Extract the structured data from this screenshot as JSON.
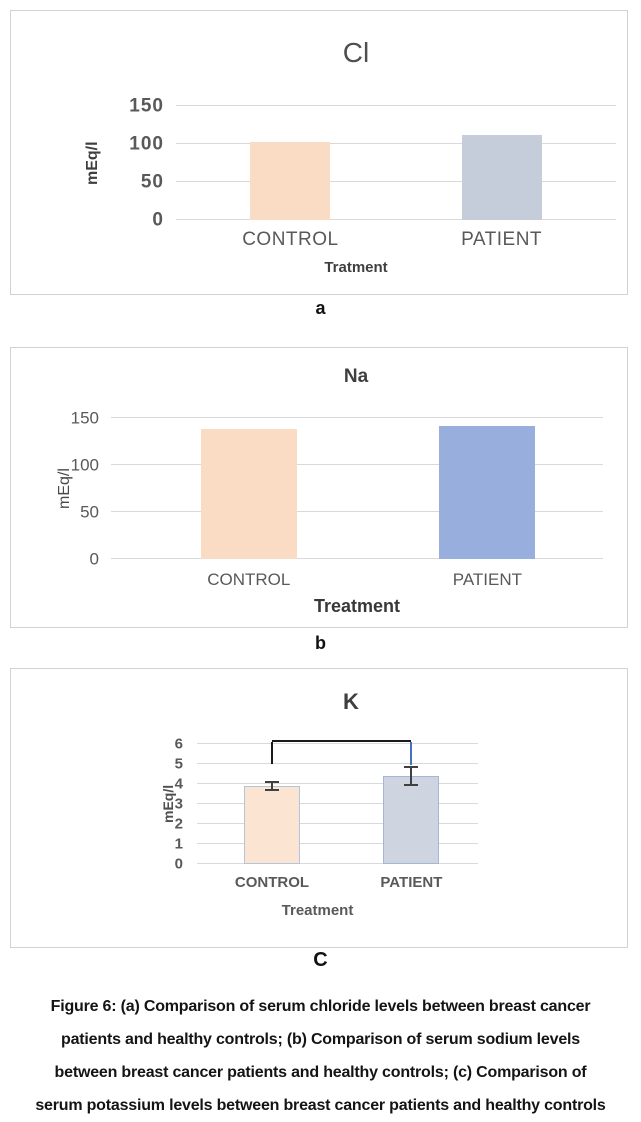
{
  "figure": {
    "caption": "Figure 6: (a)  Comparison of serum chloride levels between breast cancer\npatients and healthy controls; (b) Comparison of serum sodium levels\nbetween breast cancer patients and healthy controls; (c) Comparison of\nserum potassium levels between breast cancer patients and healthy controls"
  },
  "panel_labels": [
    "a",
    "b",
    "C"
  ],
  "colors": {
    "gridline": "#d9d9d9",
    "panel_border": "#d2d2d2",
    "error_bar": "#404040",
    "bracket": "#1a1a1a",
    "bracket_right": "#4472c4"
  },
  "chart_data": [
    {
      "type": "bar",
      "title": "Cl",
      "ylabel": "mEq/l",
      "xlabel": "Tratment",
      "categories": [
        "CONTROL",
        "PATIENT"
      ],
      "values": [
        103,
        112
      ],
      "yticks": [
        0,
        50,
        100,
        150
      ],
      "ylim": [
        0,
        150
      ],
      "bar_fill": [
        "#fadcc5",
        "#c6cdda"
      ],
      "grid": true,
      "legend": false
    },
    {
      "type": "bar",
      "title": "Na",
      "ylabel": "mEq/l",
      "xlabel": "Treatment",
      "categories": [
        "CONTROL",
        "PATIENT"
      ],
      "values": [
        138,
        142
      ],
      "yticks": [
        0,
        50,
        100,
        150
      ],
      "ylim": [
        0,
        150
      ],
      "bar_fill": [
        "#f9dcc3",
        "#98afde"
      ],
      "grid": true,
      "legend": false
    },
    {
      "type": "bar",
      "title": "K",
      "ylabel": "mEq/l",
      "xlabel": "Treatment",
      "categories": [
        "CONTROL",
        "PATIENT"
      ],
      "values": [
        3.9,
        4.4
      ],
      "errors": [
        0.25,
        0.5
      ],
      "yticks": [
        0,
        1,
        2,
        3,
        4,
        5,
        6
      ],
      "ylim": [
        0,
        6
      ],
      "bar_fill": [
        "#fce4d2",
        "#ced5e0"
      ],
      "bar_border": [
        "#b3c4de",
        "#a3b7d6"
      ],
      "bracket": {
        "y": 6.08,
        "left_bottom": 5.0,
        "right_bottom": 4.93,
        "color": "#1a1a1a",
        "right_color": "#4472c4"
      },
      "grid": true,
      "legend": false
    }
  ]
}
